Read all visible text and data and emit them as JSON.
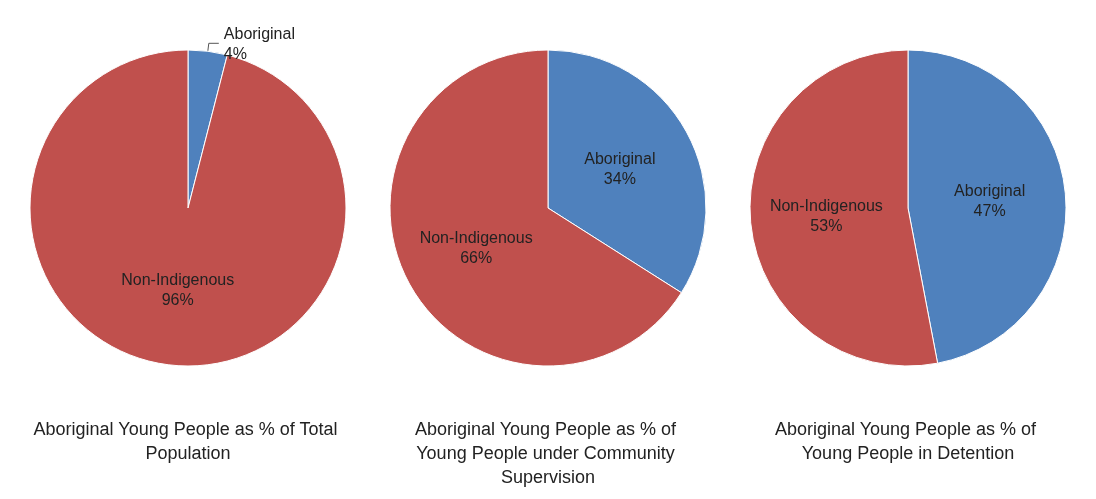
{
  "chart_data": [
    {
      "type": "pie",
      "title": "Aboriginal Young People as % of Total Population",
      "categories": [
        "Aboriginal",
        "Non-Indigenous"
      ],
      "values": [
        4,
        96
      ],
      "value_labels": [
        "4%",
        "96%"
      ],
      "colors": [
        "#4f81bd",
        "#c0504d"
      ],
      "legend": false
    },
    {
      "type": "pie",
      "title": "Aboriginal Young People as % of Young People under Community Supervision",
      "categories": [
        "Aboriginal",
        "Non-Indigenous"
      ],
      "values": [
        34,
        66
      ],
      "value_labels": [
        "34%",
        "66%"
      ],
      "colors": [
        "#4f81bd",
        "#c0504d"
      ],
      "legend": false
    },
    {
      "type": "pie",
      "title": "Aboriginal Young People as % of Young People in Detention",
      "categories": [
        "Aboriginal",
        "Non-Indigenous"
      ],
      "values": [
        47,
        53
      ],
      "value_labels": [
        "47%",
        "53%"
      ],
      "colors": [
        "#4f81bd",
        "#c0504d"
      ],
      "legend": false
    }
  ]
}
